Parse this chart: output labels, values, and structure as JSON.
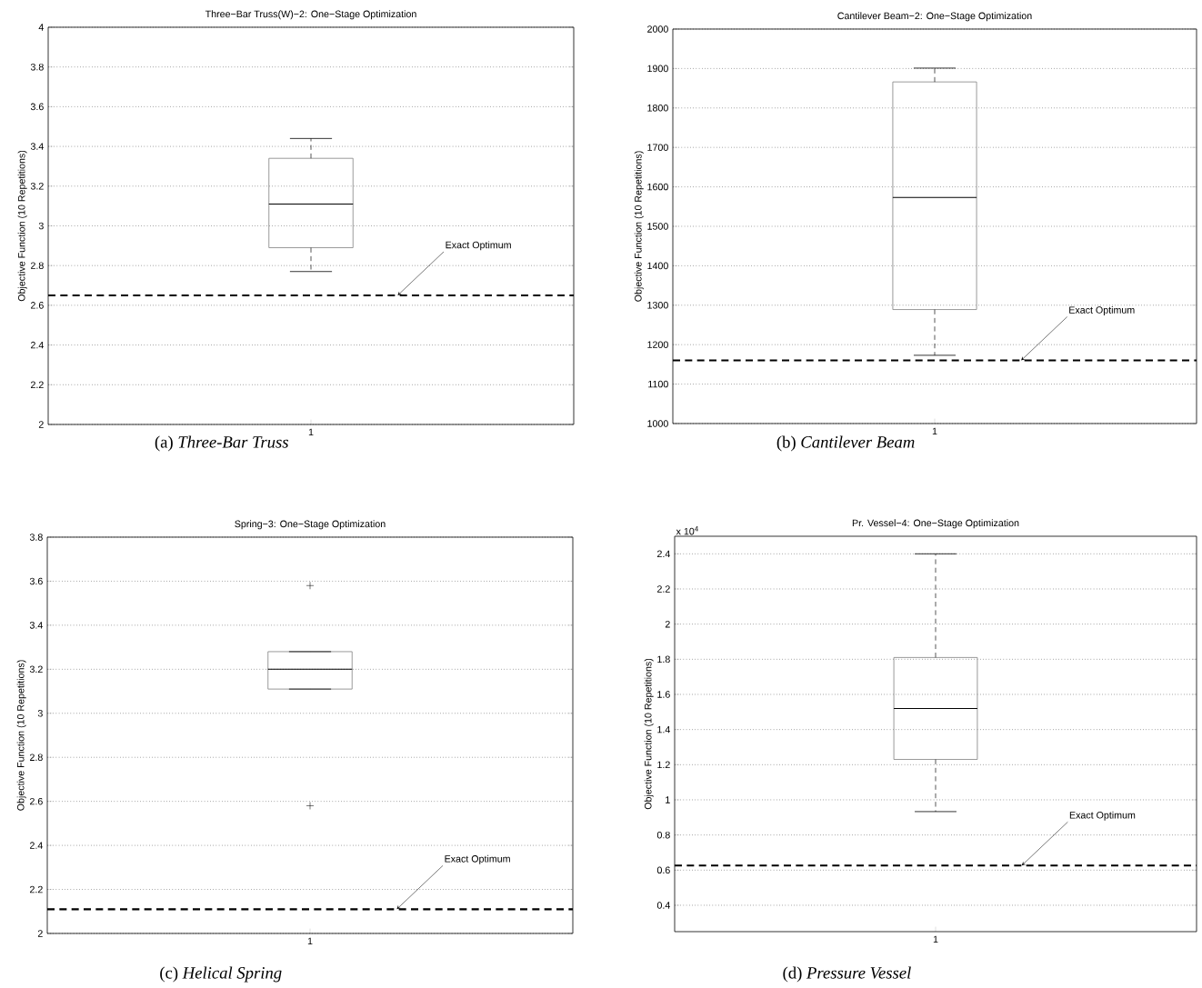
{
  "chart_data": [
    {
      "type": "box",
      "title": "Three−Bar Truss(W)−2: One−Stage Optimization",
      "subtitle": "(a) *Three-Bar Truss*",
      "ylabel": "Objective Function (10 Repetitions)",
      "categories": [
        "1"
      ],
      "boxes": [
        {
          "low": 2.77,
          "q1": 2.89,
          "median": 3.11,
          "q3": 3.34,
          "high": 3.44
        }
      ],
      "ylim": [
        2,
        4
      ],
      "yticks": [
        2,
        2.2,
        2.4,
        2.6,
        2.8,
        3,
        3.2,
        3.4,
        3.6,
        3.8,
        4
      ],
      "grid": "y",
      "ref_lines": [
        {
          "axis": "y",
          "value": 2.65,
          "line_style": "dashed"
        }
      ],
      "annotations": [
        "Exact Optimum"
      ]
    },
    {
      "type": "box",
      "title": "Cantilever Beam−2: One−Stage Optimization",
      "subtitle": "(b) *Cantilever Beam*",
      "ylabel": "Objective Function (10 Repetitions)",
      "categories": [
        "1"
      ],
      "boxes": [
        {
          "low": 1173,
          "q1": 1289,
          "median": 1573,
          "q3": 1866,
          "high": 1901
        }
      ],
      "ylim": [
        1000,
        2000
      ],
      "yticks": [
        1000,
        1100,
        1200,
        1300,
        1400,
        1500,
        1600,
        1700,
        1800,
        1900,
        2000
      ],
      "grid": "y",
      "ref_lines": [
        {
          "axis": "y",
          "value": 1160,
          "line_style": "dashed"
        }
      ],
      "annotations": [
        "Exact Optimum"
      ]
    },
    {
      "type": "box",
      "title": "Spring−3: One−Stage Optimization",
      "subtitle": "(c) *Helical Spring*",
      "ylabel": "Objective Function (10 Repetitions)",
      "categories": [
        "1"
      ],
      "boxes": [
        {
          "low": 3.11,
          "q1": 3.11,
          "median": 3.2,
          "q3": 3.28,
          "high": 3.28,
          "outliers": [
            3.58,
            2.58
          ]
        }
      ],
      "ylim": [
        2,
        3.8
      ],
      "yticks": [
        2,
        2.2,
        2.4,
        2.6,
        2.8,
        3,
        3.2,
        3.4,
        3.6,
        3.8
      ],
      "grid": "y",
      "ref_lines": [
        {
          "axis": "y",
          "value": 2.11,
          "line_style": "dashed"
        }
      ],
      "annotations": [
        "Exact Optimum"
      ]
    },
    {
      "type": "box",
      "title": "Pr. Vessel−4: One−Stage Optimization",
      "subtitle": "(d) *Pressure Vessel*",
      "ylabel": "Objective Function (10 Repetitions)",
      "categories": [
        "1"
      ],
      "boxes": [
        {
          "low": 0.933,
          "q1": 1.23,
          "median": 1.52,
          "q3": 1.81,
          "high": 2.4
        }
      ],
      "ylim": [
        0.25,
        2.5
      ],
      "yticks": [
        0.4,
        0.6,
        0.8,
        1,
        1.2,
        1.4,
        1.6,
        1.8,
        2,
        2.2,
        2.4
      ],
      "grid": "y",
      "ref_lines": [
        {
          "axis": "y",
          "value": 0.626,
          "line_style": "dashed"
        }
      ],
      "annotations": [
        "Exact Optimum",
        "x 10$^{4}$"
      ]
    }
  ]
}
